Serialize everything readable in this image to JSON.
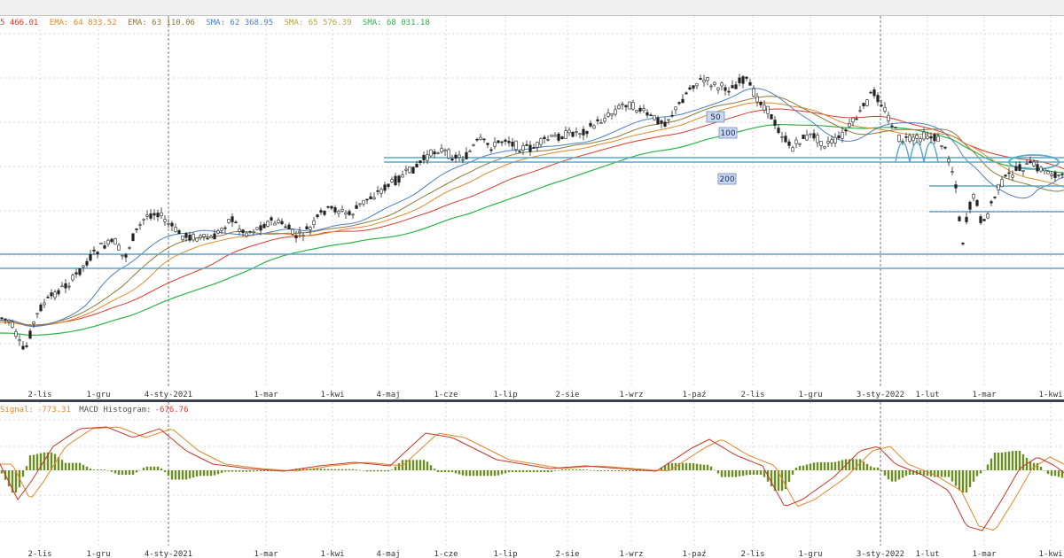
{
  "legend": [
    {
      "text": "5 466.01",
      "color": "#d93a2b"
    },
    {
      "text": "EMA: 64 833.52",
      "color": "#e0892b"
    },
    {
      "text": "EMA: 63 110.06",
      "color": "#8c7a3c"
    },
    {
      "text": "SMA: 62 368.95",
      "color": "#4a7fc8"
    },
    {
      "text": "SMA: 65 576.39",
      "color": "#b5a642"
    },
    {
      "text": "SMA: 68 031.18",
      "color": "#2db34a"
    }
  ],
  "macd_legend": {
    "signal_label": "Signal:",
    "signal_value": "-773.31",
    "hist_label": "MACD Histogram:",
    "hist_value": "-676.76",
    "signal_color": "#e0892b",
    "hist_color": "#d93a2b"
  },
  "chart_data": {
    "type": "candlestick",
    "x_ticks": [
      "2-lis",
      "1-gru",
      "4-sty-2021",
      "1-mar",
      "1-kwi",
      "4-maj",
      "1-cze",
      "1-lip",
      "2-sie",
      "1-wrz",
      "1-paź",
      "2-lis",
      "1-gru",
      "3-sty-2022",
      "1-lut",
      "1-mar",
      "1-kwi"
    ],
    "year_separators": [
      "4-sty-2021",
      "3-sty-2022"
    ],
    "ma_labels": [
      "50",
      "100",
      "200"
    ],
    "colors": {
      "candle": "#222222",
      "ema_red": "#d93a2b",
      "ema_orange": "#e0892b",
      "sma_blue": "#4a7fc8",
      "sma_olive": "#8c7a3c",
      "sma_green": "#2db34a",
      "hline": "#5aa8c8",
      "macd_hist": "#6b8e23",
      "macd_line": "#c0392b",
      "signal_line": "#e0892b",
      "grid": "#d9d9d9"
    },
    "grid": true
  }
}
